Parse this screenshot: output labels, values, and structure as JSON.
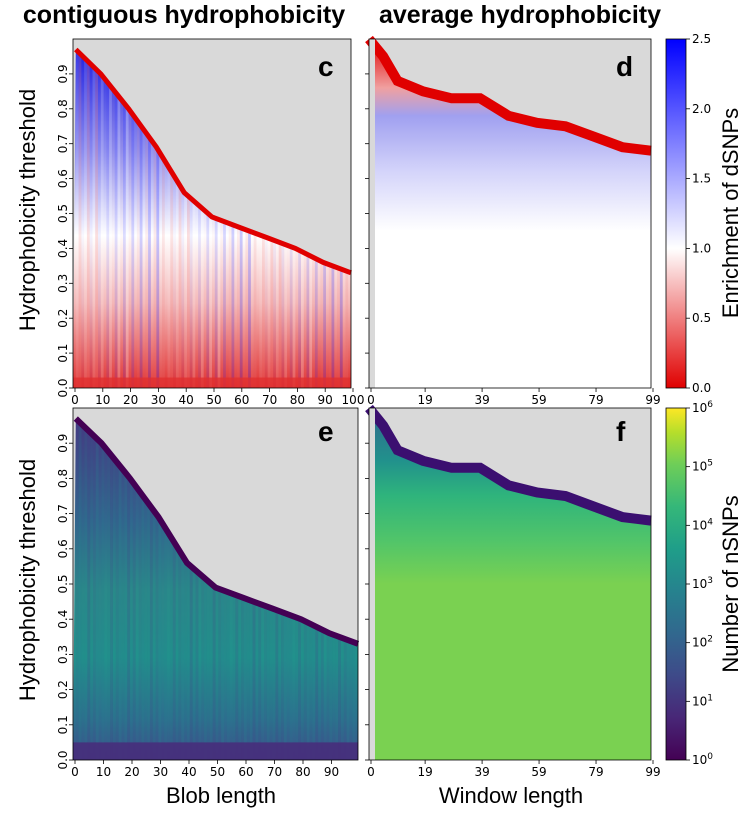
{
  "titles": {
    "left": "contiguous hydrophobicity",
    "right": "average hydrophobicity"
  },
  "axis_labels": {
    "y_top": "Hydrophobicity threshold",
    "y_bottom": "Hydrophobicity threshold",
    "x_left": "Blob length",
    "x_right": "Window length",
    "cbar_top": "Enrichment of dSNPs",
    "cbar_bottom": "Number of nSNPs"
  },
  "panel_letters": {
    "c": "c",
    "d": "d",
    "e": "e",
    "f": "f"
  },
  "y_ticks": [
    "0.0",
    "0.1",
    "0.2",
    "0.3",
    "0.4",
    "0.5",
    "0.6",
    "0.7",
    "0.8",
    "0.9"
  ],
  "x_ticks_c": [
    "0",
    "10",
    "20",
    "30",
    "40",
    "50",
    "60",
    "70",
    "80",
    "90",
    "100"
  ],
  "x_ticks_e": [
    "0",
    "10",
    "20",
    "30",
    "40",
    "50",
    "60",
    "70",
    "80",
    "90"
  ],
  "x_ticks_window": [
    "0",
    "19",
    "39",
    "59",
    "79",
    "99"
  ],
  "cbar_top_ticks": [
    "0.0",
    "0.5",
    "1.0",
    "1.5",
    "2.0",
    "2.5"
  ],
  "cbar_bottom_ticks": [
    {
      "base": "10",
      "exp": "0"
    },
    {
      "base": "10",
      "exp": "1"
    },
    {
      "base": "10",
      "exp": "2"
    },
    {
      "base": "10",
      "exp": "3"
    },
    {
      "base": "10",
      "exp": "4"
    },
    {
      "base": "10",
      "exp": "5"
    },
    {
      "base": "10",
      "exp": "6"
    }
  ],
  "colors": {
    "missing": "#d9d9d9",
    "diverging_low": "#e00000",
    "diverging_mid": "#ffffff",
    "diverging_high": "#0000ff",
    "viridis": [
      "#440154",
      "#482777",
      "#3e4a89",
      "#31688e",
      "#26828e",
      "#1f9e89",
      "#35b779",
      "#6ece58",
      "#b5de2b",
      "#fde725"
    ]
  },
  "chart_data": [
    {
      "panel": "c",
      "type": "heatmap",
      "xlabel": "",
      "ylabel": "Hydrophobicity threshold",
      "xlim": [
        0,
        100
      ],
      "ylim": [
        0,
        1
      ],
      "colorbar": "Enrichment of dSNPs",
      "clim": [
        0,
        2.5
      ],
      "boundary": [
        [
          1,
          0.97
        ],
        [
          10,
          0.9
        ],
        [
          20,
          0.8
        ],
        [
          30,
          0.69
        ],
        [
          40,
          0.56
        ],
        [
          50,
          0.49
        ],
        [
          60,
          0.46
        ],
        [
          70,
          0.43
        ],
        [
          80,
          0.4
        ],
        [
          90,
          0.36
        ],
        [
          100,
          0.33
        ]
      ]
    },
    {
      "panel": "d",
      "type": "heatmap",
      "xlabel": "",
      "ylabel": "",
      "xlim": [
        0,
        99
      ],
      "ylim": [
        0,
        1
      ],
      "colorbar": "Enrichment of dSNPs",
      "clim": [
        0,
        2.5
      ],
      "boundary": [
        [
          0,
          1.0
        ],
        [
          5,
          0.95
        ],
        [
          10,
          0.88
        ],
        [
          19,
          0.85
        ],
        [
          29,
          0.83
        ],
        [
          39,
          0.83
        ],
        [
          49,
          0.78
        ],
        [
          59,
          0.76
        ],
        [
          69,
          0.75
        ],
        [
          79,
          0.72
        ],
        [
          89,
          0.69
        ],
        [
          99,
          0.68
        ]
      ]
    },
    {
      "panel": "e",
      "type": "heatmap",
      "xlabel": "Blob length",
      "ylabel": "Hydrophobicity threshold",
      "xlim": [
        0,
        100
      ],
      "ylim": [
        0,
        1
      ],
      "colorbar": "Number of nSNPs",
      "clim": [
        1,
        1000000
      ],
      "scale": "log",
      "boundary": [
        [
          1,
          0.97
        ],
        [
          10,
          0.9
        ],
        [
          20,
          0.8
        ],
        [
          30,
          0.69
        ],
        [
          40,
          0.56
        ],
        [
          50,
          0.49
        ],
        [
          60,
          0.46
        ],
        [
          70,
          0.43
        ],
        [
          80,
          0.4
        ],
        [
          90,
          0.36
        ],
        [
          100,
          0.33
        ]
      ]
    },
    {
      "panel": "f",
      "type": "heatmap",
      "xlabel": "Window length",
      "ylabel": "",
      "xlim": [
        0,
        99
      ],
      "ylim": [
        0,
        1
      ],
      "colorbar": "Number of nSNPs",
      "clim": [
        1,
        1000000
      ],
      "scale": "log",
      "boundary": [
        [
          0,
          1.0
        ],
        [
          5,
          0.95
        ],
        [
          10,
          0.88
        ],
        [
          19,
          0.85
        ],
        [
          29,
          0.83
        ],
        [
          39,
          0.83
        ],
        [
          49,
          0.78
        ],
        [
          59,
          0.76
        ],
        [
          69,
          0.75
        ],
        [
          79,
          0.72
        ],
        [
          89,
          0.69
        ],
        [
          99,
          0.68
        ]
      ]
    }
  ]
}
